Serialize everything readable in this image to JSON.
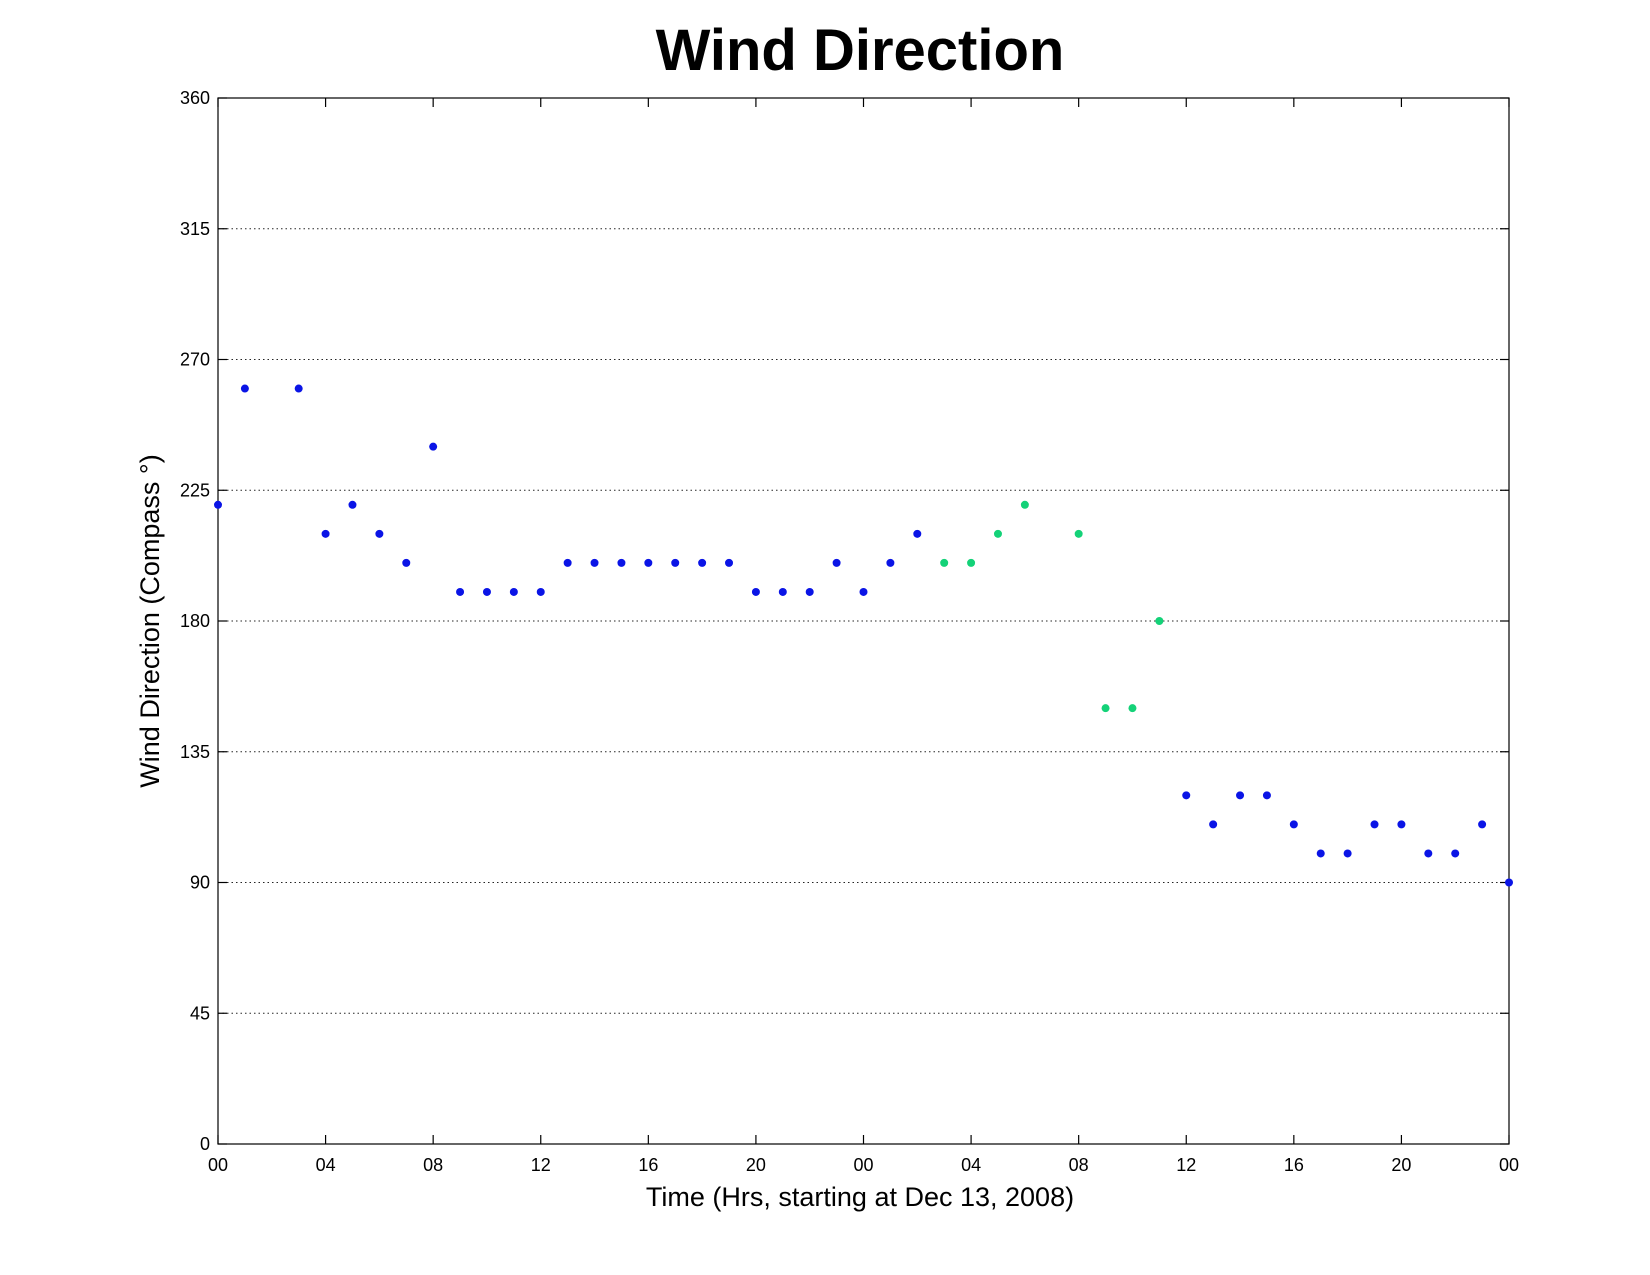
{
  "chart_data": {
    "type": "scatter",
    "title": "Wind Direction",
    "xlabel": "Time (Hrs, starting at Dec 13, 2008)",
    "ylabel": "Wind Direction (Compass °)",
    "xlim": [
      0,
      48
    ],
    "ylim": [
      0,
      360
    ],
    "yticks": [
      0,
      45,
      90,
      135,
      180,
      225,
      270,
      315,
      360
    ],
    "xticks": [
      {
        "x": 0,
        "label": "00"
      },
      {
        "x": 4,
        "label": "04"
      },
      {
        "x": 8,
        "label": "08"
      },
      {
        "x": 12,
        "label": "12"
      },
      {
        "x": 16,
        "label": "16"
      },
      {
        "x": 20,
        "label": "20"
      },
      {
        "x": 24,
        "label": "00"
      },
      {
        "x": 28,
        "label": "04"
      },
      {
        "x": 32,
        "label": "08"
      },
      {
        "x": 36,
        "label": "12"
      },
      {
        "x": 40,
        "label": "16"
      },
      {
        "x": 44,
        "label": "20"
      },
      {
        "x": 48,
        "label": "00"
      }
    ],
    "grid": "y-dotted",
    "series": [
      {
        "color": "#0a14e6",
        "points": [
          [
            0,
            220
          ],
          [
            1,
            260
          ],
          [
            3,
            260
          ],
          [
            4,
            210
          ],
          [
            5,
            220
          ],
          [
            6,
            210
          ],
          [
            7,
            200
          ],
          [
            8,
            240
          ],
          [
            9,
            190
          ],
          [
            10,
            190
          ],
          [
            11,
            190
          ],
          [
            12,
            190
          ],
          [
            13,
            200
          ],
          [
            14,
            200
          ],
          [
            15,
            200
          ],
          [
            16,
            200
          ],
          [
            17,
            200
          ],
          [
            18,
            200
          ],
          [
            19,
            200
          ],
          [
            20,
            190
          ],
          [
            21,
            190
          ],
          [
            22,
            190
          ],
          [
            23,
            200
          ],
          [
            24,
            190
          ],
          [
            25,
            200
          ],
          [
            26,
            210
          ],
          [
            36,
            120
          ],
          [
            37,
            110
          ],
          [
            38,
            120
          ],
          [
            39,
            120
          ],
          [
            40,
            110
          ],
          [
            41,
            100
          ],
          [
            42,
            100
          ],
          [
            43,
            110
          ],
          [
            44,
            110
          ],
          [
            45,
            100
          ],
          [
            46,
            100
          ],
          [
            47,
            110
          ],
          [
            48,
            90
          ]
        ]
      },
      {
        "color": "#14d278",
        "points": [
          [
            27,
            200
          ],
          [
            28,
            200
          ],
          [
            29,
            210
          ],
          [
            30,
            220
          ],
          [
            32,
            210
          ],
          [
            33,
            150
          ],
          [
            34,
            150
          ],
          [
            35,
            180
          ]
        ]
      }
    ]
  }
}
